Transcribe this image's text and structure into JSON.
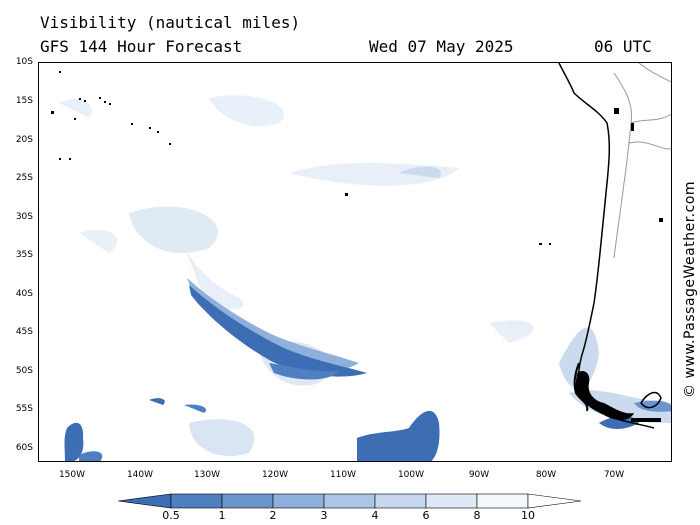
{
  "header": {
    "title": "Visibility (nautical miles)",
    "subtitle": "GFS 144 Hour Forecast",
    "date": "Wed 07 May 2025",
    "time": "06 UTC"
  },
  "credit": "© www.PassageWeather.com",
  "map": {
    "region": "South-East Pacific Ocean / Southern Chile",
    "lat_labels": [
      "10S",
      "15S",
      "20S",
      "25S",
      "30S",
      "35S",
      "40S",
      "45S",
      "50S",
      "55S",
      "60S"
    ],
    "lon_labels": [
      "150W",
      "140W",
      "130W",
      "120W",
      "110W",
      "100W",
      "90W",
      "80W",
      "70W"
    ],
    "colors": {
      "ocean": "#ffffff",
      "coastline": "#000000",
      "borders": "#999999",
      "vis_0_5": "#3d6db3",
      "vis_1": "#4f7fc0",
      "vis_3": "#8fb0dc",
      "vis_6": "#c6d7ee",
      "vis_8": "#e6eef8"
    }
  },
  "legend": {
    "ticks": [
      "0.5",
      "1",
      "2",
      "3",
      "4",
      "6",
      "8",
      "10"
    ],
    "colors": [
      "#3d6db3",
      "#4f7fc0",
      "#6b94cc",
      "#8fb0dc",
      "#adc6e6",
      "#c6d7ee",
      "#dfe9f6",
      "#f4f8fc",
      "#ffffff"
    ]
  }
}
